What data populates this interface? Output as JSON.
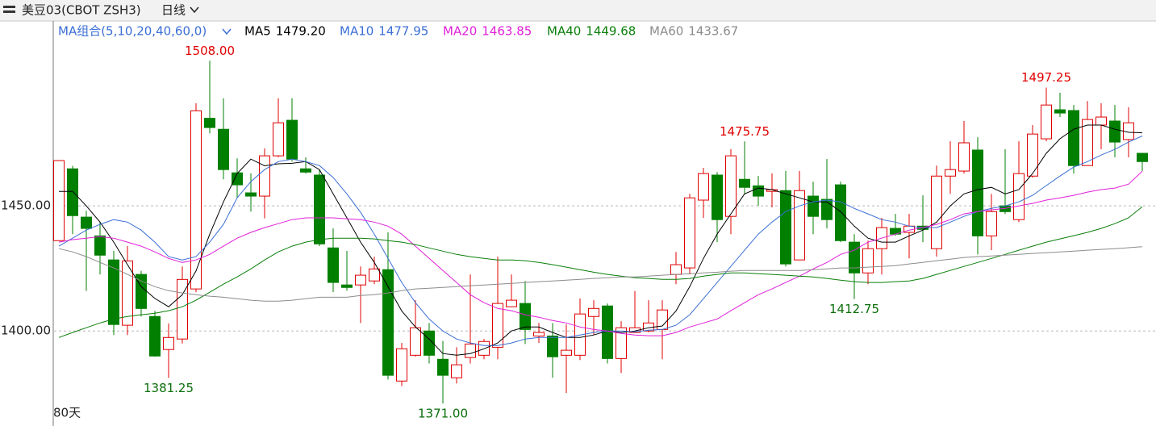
{
  "header": {
    "title": "美豆03(CBOT ZSH3)",
    "period": "日线"
  },
  "chart_data": {
    "type": "candlestick",
    "indicator": "MA组合(5,10,20,40,60,0)",
    "footer": "80天",
    "up_color": "#e00000",
    "down_color": "#007f00",
    "ylim": [
      1363,
      1515.5
    ],
    "yticks": [
      {
        "value": 1400,
        "label": "1400.00"
      },
      {
        "value": 1450,
        "label": "1450.00"
      }
    ],
    "grid": true,
    "open": [
      1436.1,
      1464.8,
      1445.5,
      1438,
      1428.4,
      1402.3,
      1422.6,
      1405.8,
      1392.6,
      1396.8,
      1416.8,
      1485,
      1480.6,
      1463.2,
      1455.2,
      1453.9,
      1470,
      1484.2,
      1464.8,
      1462.3,
      1433.2,
      1418.4,
      1418.4,
      1420,
      1424.5,
      1380,
      1390.3,
      1400,
      1388.7,
      1381.3,
      1389.4,
      1390.3,
      1393.5,
      1409.7,
      1411,
      1398,
      1398,
      1390.3,
      1390.3,
      1405.8,
      1410,
      1389,
      1399.4,
      1400,
      1400.6,
      1422.6,
      1425.2,
      1452.3,
      1462.3,
      1445.8,
      1460.6,
      1458,
      1455.8,
      1456.1,
      1428.4,
      1453.9,
      1452.6,
      1458.4,
      1435.5,
      1423.2,
      1432.9,
      1441,
      1439.4,
      1441.9,
      1432.9,
      1461.9,
      1463.9,
      1472.3,
      1438,
      1450,
      1444.5,
      1461.9,
      1476.8,
      1488.4,
      1488.1,
      1466.1,
      1482.3,
      1483.9,
      1476.5,
      1471
    ],
    "high": [
      1468.1,
      1466,
      1448,
      1443.5,
      1432,
      1434,
      1424,
      1408,
      1403,
      1425.8,
      1491,
      1508,
      1493,
      1469,
      1463,
      1473,
      1493,
      1493,
      1469.4,
      1464.5,
      1441,
      1432,
      1425.8,
      1429.7,
      1439.4,
      1395.2,
      1412.3,
      1403.2,
      1396,
      1393.5,
      1422.6,
      1396.8,
      1429.7,
      1422.6,
      1420,
      1403.2,
      1403.2,
      1402.6,
      1413,
      1412.3,
      1411,
      1403.9,
      1416,
      1412.3,
      1412.3,
      1431.6,
      1454.8,
      1465.2,
      1463.5,
      1472.6,
      1475.75,
      1462,
      1463,
      1463.9,
      1463.9,
      1459.7,
      1468.7,
      1459.7,
      1438.7,
      1436.1,
      1445.2,
      1446.8,
      1446.8,
      1454.2,
      1466.1,
      1475.8,
      1483.9,
      1477.4,
      1454.8,
      1472.6,
      1475.8,
      1482.3,
      1497.25,
      1495.2,
      1490.3,
      1491.9,
      1491,
      1490.3,
      1489.4,
      1471
    ],
    "low": [
      1436.1,
      1438.7,
      1416,
      1422.6,
      1398.4,
      1398.4,
      1405.8,
      1389.7,
      1381.25,
      1395,
      1415.5,
      1479,
      1460.6,
      1453.2,
      1447.7,
      1445,
      1469.4,
      1467.7,
      1462.9,
      1433.9,
      1415.5,
      1416.1,
      1403.2,
      1418.7,
      1380.6,
      1378,
      1389.7,
      1387,
      1371,
      1379,
      1387,
      1388.7,
      1388.7,
      1409.7,
      1394.8,
      1395.2,
      1381.3,
      1375.2,
      1388.4,
      1398.4,
      1387,
      1383.2,
      1399.4,
      1399.4,
      1388.7,
      1418.7,
      1422.6,
      1445.2,
      1435.5,
      1438.7,
      1454.8,
      1450,
      1449.4,
      1425.8,
      1428.4,
      1438.7,
      1441,
      1435.5,
      1412.75,
      1418.7,
      1422.6,
      1438,
      1429,
      1435.5,
      1429.7,
      1454.8,
      1462.9,
      1430.6,
      1432.3,
      1446.8,
      1443.5,
      1461.3,
      1475.8,
      1485.5,
      1462.9,
      1466.1,
      1472.6,
      1469.4,
      1469.4,
      1463.9
    ],
    "close": [
      1468.1,
      1446.1,
      1441,
      1430.3,
      1402.6,
      1428,
      1409,
      1390,
      1397.4,
      1420.6,
      1488,
      1481.3,
      1464.5,
      1458.4,
      1453.9,
      1470,
      1483.2,
      1468.7,
      1463.5,
      1434.8,
      1419.4,
      1417.4,
      1422.3,
      1424.8,
      1382.3,
      1392.9,
      1401.3,
      1390.3,
      1382.3,
      1386.5,
      1394.8,
      1395.8,
      1411,
      1412.3,
      1400.6,
      1399.4,
      1389.7,
      1392.3,
      1406.8,
      1409,
      1389,
      1401.3,
      1401.3,
      1403.2,
      1408.4,
      1426.5,
      1453.2,
      1462.9,
      1444.5,
      1470,
      1457.4,
      1453.9,
      1456.5,
      1426.8,
      1456.1,
      1445.8,
      1444.5,
      1436.1,
      1423.2,
      1432.9,
      1441.3,
      1438.7,
      1441.9,
      1440.6,
      1461.9,
      1464.5,
      1475.2,
      1438,
      1447.7,
      1447.7,
      1462.9,
      1478.7,
      1490.3,
      1487.1,
      1466.1,
      1484.5,
      1485.5,
      1475.5,
      1483.2,
      1467.7
    ],
    "series": [
      {
        "name": "MA5",
        "color": "#000000",
        "last_label": "1479.20",
        "values": [
          1455.8,
          1455.8,
          1450,
          1443.5,
          1435.5,
          1426.5,
          1417.7,
          1413,
          1409.7,
          1414.5,
          1424,
          1438.7,
          1451.6,
          1462.9,
          1468.7,
          1466,
          1466.8,
          1467,
          1467.7,
          1464.5,
          1454.8,
          1445.2,
          1435.5,
          1427.4,
          1417.7,
          1408,
          1401.6,
          1396.8,
          1391,
          1390.3,
          1391,
          1392.9,
          1395.2,
          1400,
          1401.6,
          1401.6,
          1399.4,
          1397.4,
          1397.4,
          1398.4,
          1400,
          1399.4,
          1400,
          1401.3,
          1402,
          1408,
          1417.7,
          1429,
          1438.7,
          1446.8,
          1454.8,
          1457.1,
          1456.5,
          1454.8,
          1453.2,
          1451.6,
          1451.6,
          1447.7,
          1441.9,
          1437.1,
          1435.5,
          1435.5,
          1438,
          1440.3,
          1443.5,
          1450,
          1454.8,
          1456.5,
          1457.4,
          1454.8,
          1456.5,
          1462.9,
          1471,
          1476.8,
          1480.6,
          1482.3,
          1482.3,
          1480.6,
          1479.4,
          1479.2
        ]
      },
      {
        "name": "MA10",
        "color": "#3b6fd6",
        "last_label": "1477.95",
        "values": [
          1433.9,
          1437.1,
          1440.3,
          1442.6,
          1444.5,
          1443.5,
          1440.3,
          1435.5,
          1429.7,
          1428.4,
          1429.7,
          1435.5,
          1442.6,
          1453.2,
          1459.7,
          1464.5,
          1467.7,
          1468.7,
          1467.7,
          1466.1,
          1461.3,
          1454.8,
          1447.4,
          1438.7,
          1429,
          1419.4,
          1411.3,
          1404.8,
          1400,
          1396.8,
          1395.2,
          1394.2,
          1394.2,
          1395.2,
          1396.8,
          1397.4,
          1397.4,
          1397.4,
          1398.4,
          1399.4,
          1400,
          1400,
          1399.7,
          1400.3,
          1400.6,
          1402.3,
          1406.5,
          1412.9,
          1419.4,
          1425.8,
          1432.3,
          1438.7,
          1443.5,
          1447.7,
          1450,
          1451.6,
          1452.3,
          1451.6,
          1449,
          1446.8,
          1444.5,
          1443.5,
          1441.9,
          1441.3,
          1441.3,
          1443.5,
          1445.8,
          1447.7,
          1449,
          1450,
          1451.6,
          1454.2,
          1458.1,
          1461.9,
          1465.5,
          1467.7,
          1470.3,
          1472.6,
          1475.5,
          1477.95
        ]
      },
      {
        "name": "MA20",
        "color": "#e020d8",
        "last_label": "1463.85",
        "values": [
          1435.5,
          1436.5,
          1437.1,
          1437.7,
          1437.1,
          1435.5,
          1433.9,
          1431.6,
          1429,
          1427.4,
          1428.4,
          1430.6,
          1433.9,
          1437.1,
          1439.4,
          1441.3,
          1442.9,
          1444.5,
          1445.2,
          1445.2,
          1445.2,
          1444.8,
          1444.5,
          1443.5,
          1441.9,
          1438.7,
          1433.9,
          1429,
          1424.2,
          1419.4,
          1414.5,
          1411.3,
          1409,
          1408.1,
          1406.5,
          1405.5,
          1404.2,
          1403.2,
          1401.6,
          1400.6,
          1400,
          1399,
          1398.4,
          1398.1,
          1398.1,
          1399.4,
          1401.6,
          1403.2,
          1404.8,
          1408.1,
          1411.3,
          1414.5,
          1416.8,
          1419.4,
          1421.9,
          1424.8,
          1427.4,
          1430.6,
          1432.3,
          1435.5,
          1437.1,
          1438.7,
          1440.3,
          1441.3,
          1442.6,
          1444.5,
          1446.8,
          1447.7,
          1448.4,
          1449,
          1450,
          1451,
          1452.3,
          1453.2,
          1454.2,
          1455.5,
          1456.5,
          1457.1,
          1458.7,
          1463.85
        ]
      },
      {
        "name": "MA40",
        "color": "#0a7f0a",
        "last_label": "1449.68",
        "values": [
          1397.4,
          1399.4,
          1401.3,
          1403.2,
          1404.8,
          1405.8,
          1406.5,
          1407.1,
          1408.1,
          1409.7,
          1412.3,
          1415.5,
          1418.7,
          1421.6,
          1424.8,
          1428.4,
          1431.6,
          1433.9,
          1435.5,
          1436.5,
          1437.1,
          1437.1,
          1437.1,
          1436.8,
          1436.1,
          1435.5,
          1434.5,
          1433.2,
          1431.9,
          1430.6,
          1429.7,
          1429,
          1428.4,
          1428.4,
          1428.1,
          1427.4,
          1426.5,
          1425.5,
          1424.5,
          1423.5,
          1422.6,
          1421.9,
          1421.3,
          1421,
          1420.6,
          1420.6,
          1421,
          1421.9,
          1422.6,
          1423.2,
          1423.2,
          1422.9,
          1422.6,
          1422.3,
          1421.9,
          1421.6,
          1421,
          1420.3,
          1419.7,
          1419.4,
          1419.4,
          1419.7,
          1420,
          1421,
          1422.6,
          1424.2,
          1425.8,
          1427.4,
          1429,
          1430.6,
          1432.3,
          1433.9,
          1435.5,
          1436.8,
          1438.1,
          1439.4,
          1441,
          1442.9,
          1445.2,
          1449.68
        ]
      },
      {
        "name": "MA60",
        "color": "#8c8c8c",
        "last_label": "1433.67",
        "values": [
          1432.9,
          1431.6,
          1429.7,
          1427.4,
          1425.2,
          1422.6,
          1420,
          1417.7,
          1416.1,
          1415.2,
          1414.5,
          1413.9,
          1413.5,
          1412.9,
          1412.3,
          1411.9,
          1411.9,
          1412.3,
          1412.9,
          1413.5,
          1413.5,
          1413.5,
          1414.2,
          1414.5,
          1415.2,
          1416.1,
          1416.8,
          1417.1,
          1417.4,
          1417.7,
          1418.1,
          1418.4,
          1418.7,
          1419,
          1419.4,
          1419.7,
          1420,
          1420.3,
          1420.6,
          1421,
          1421.3,
          1421.6,
          1421.6,
          1421.9,
          1422.3,
          1422.6,
          1422.9,
          1423.2,
          1423.5,
          1423.9,
          1424.2,
          1424.2,
          1424.2,
          1424.2,
          1424.2,
          1424.5,
          1424.8,
          1425.2,
          1425.2,
          1425.5,
          1425.8,
          1426.1,
          1426.8,
          1427.4,
          1428.1,
          1428.7,
          1429.4,
          1429.7,
          1430,
          1430.3,
          1430.6,
          1431,
          1431.3,
          1431.6,
          1431.9,
          1432.3,
          1432.6,
          1432.9,
          1433.3,
          1433.67
        ]
      }
    ],
    "annotations": [
      {
        "value": 1508,
        "label": "1508.00",
        "color": "#e00000"
      },
      {
        "value": 1475.75,
        "label": "1475.75",
        "color": "#e00000"
      },
      {
        "value": 1497.25,
        "label": "1497.25",
        "color": "#e00000"
      },
      {
        "value": 1381.25,
        "label": "1381.25",
        "color": "#0a6e0a"
      },
      {
        "value": 1371,
        "label": "1371.00",
        "color": "#0a6e0a"
      },
      {
        "value": 1412.75,
        "label": "1412.75",
        "color": "#0a6e0a"
      }
    ]
  }
}
